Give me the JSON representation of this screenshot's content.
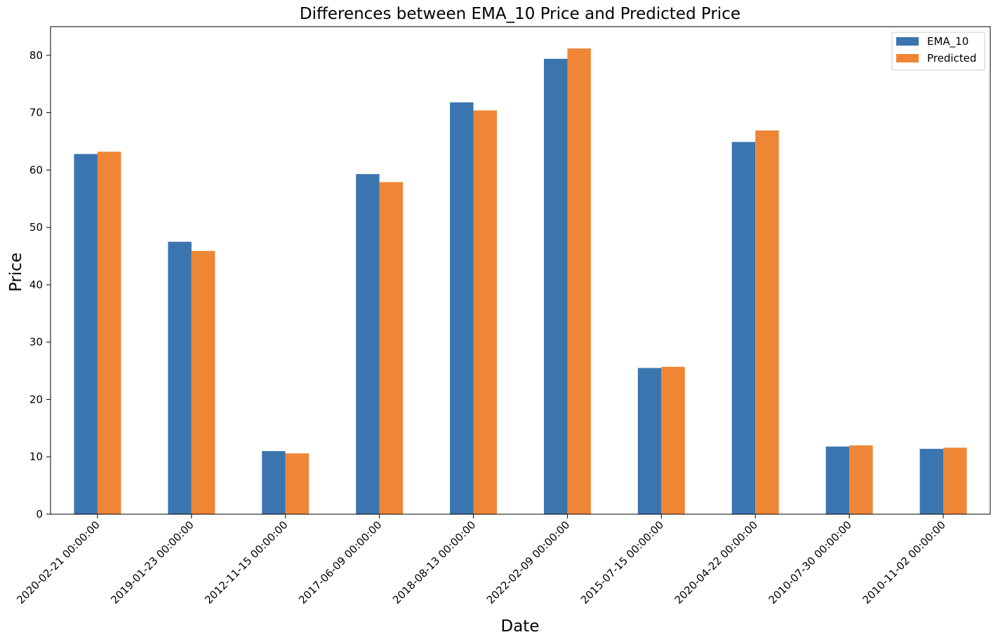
{
  "chart_data": {
    "type": "bar",
    "title": "Differences between EMA_10 Price and Predicted Price",
    "xlabel": "Date",
    "ylabel": "Price",
    "ylim": [
      0,
      85
    ],
    "yticks": [
      0,
      10,
      20,
      30,
      40,
      50,
      60,
      70,
      80
    ],
    "grid": false,
    "legend_position": "top-right",
    "categories": [
      "2020-02-21 00:00:00",
      "2019-01-23 00:00:00",
      "2012-11-15 00:00:00",
      "2017-06-09 00:00:00",
      "2018-08-13 00:00:00",
      "2022-02-09 00:00:00",
      "2015-07-15 00:00:00",
      "2020-04-22 00:00:00",
      "2010-07-30 00:00:00",
      "2010-11-02 00:00:00"
    ],
    "series": [
      {
        "name": "EMA_10",
        "color": "#3b75af",
        "values": [
          62.8,
          47.5,
          11.0,
          59.3,
          71.8,
          79.4,
          25.5,
          64.9,
          11.8,
          11.4
        ]
      },
      {
        "name": "Predicted",
        "color": "#ef8636",
        "values": [
          63.2,
          45.9,
          10.6,
          57.9,
          70.4,
          81.2,
          25.7,
          66.9,
          12.0,
          11.6
        ]
      }
    ]
  }
}
